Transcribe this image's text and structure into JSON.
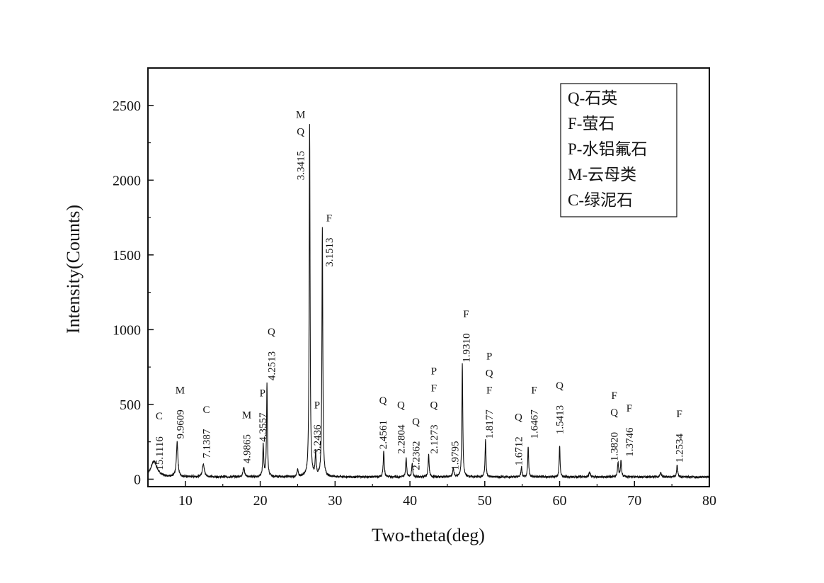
{
  "chart_data": {
    "type": "line",
    "title": "",
    "xlabel": "Two-theta(deg)",
    "ylabel": "Intensity(Counts)",
    "xlim": [
      5,
      80
    ],
    "ylim": [
      -50,
      2750
    ],
    "xticks": [
      10,
      20,
      30,
      40,
      50,
      60,
      70,
      80
    ],
    "yticks": [
      0,
      500,
      1000,
      1500,
      2000,
      2500
    ],
    "grid": false,
    "legend": {
      "placement": "top-right",
      "entries": [
        "Q-石英",
        "F-萤石",
        "P-水铝氟石",
        "M-云母类",
        "C-绿泥石"
      ]
    },
    "series": [
      {
        "peaks": [
          {
            "x": 5.8,
            "y": 105,
            "w": 0.5
          },
          {
            "x": 8.9,
            "y": 230,
            "w": 0.12
          },
          {
            "x": 12.4,
            "y": 90,
            "w": 0.15
          },
          {
            "x": 17.8,
            "y": 65,
            "w": 0.12
          },
          {
            "x": 20.4,
            "y": 210,
            "w": 0.08
          },
          {
            "x": 20.9,
            "y": 620,
            "w": 0.07
          },
          {
            "x": 25.0,
            "y": 45,
            "w": 0.1
          },
          {
            "x": 26.6,
            "y": 2360,
            "w": 0.07
          },
          {
            "x": 27.4,
            "y": 150,
            "w": 0.08
          },
          {
            "x": 28.3,
            "y": 1670,
            "w": 0.07
          },
          {
            "x": 36.5,
            "y": 175,
            "w": 0.08
          },
          {
            "x": 39.5,
            "y": 130,
            "w": 0.08
          },
          {
            "x": 40.3,
            "y": 90,
            "w": 0.08
          },
          {
            "x": 42.5,
            "y": 150,
            "w": 0.08
          },
          {
            "x": 45.8,
            "y": 55,
            "w": 0.1
          },
          {
            "x": 47.0,
            "y": 760,
            "w": 0.07
          },
          {
            "x": 50.1,
            "y": 250,
            "w": 0.07
          },
          {
            "x": 54.9,
            "y": 70,
            "w": 0.08
          },
          {
            "x": 55.8,
            "y": 205,
            "w": 0.07
          },
          {
            "x": 60.0,
            "y": 210,
            "w": 0.07
          },
          {
            "x": 64.0,
            "y": 35,
            "w": 0.1
          },
          {
            "x": 67.8,
            "y": 100,
            "w": 0.08
          },
          {
            "x": 68.2,
            "y": 110,
            "w": 0.08
          },
          {
            "x": 73.5,
            "y": 30,
            "w": 0.1
          },
          {
            "x": 75.7,
            "y": 80,
            "w": 0.08
          }
        ],
        "baseline": 15
      }
    ],
    "peak_labels": [
      {
        "text": "15.1116",
        "x": 6.5,
        "y": 60,
        "phase": "C"
      },
      {
        "text": "9.9609",
        "x": 9.3,
        "y": 270,
        "phase": "M"
      },
      {
        "text": "7.1387",
        "x": 12.8,
        "y": 140,
        "phase": "C"
      },
      {
        "text": "4.9865",
        "x": 18.2,
        "y": 105,
        "phase": "M"
      },
      {
        "text": "4.3557",
        "x": 20.3,
        "y": 250,
        "phase": "P"
      },
      {
        "text": "4.2513",
        "x": 21.5,
        "y": 660,
        "phase": "Q"
      },
      {
        "text": "3.3415",
        "x": 25.4,
        "y": 2000,
        "phase": "M\nQ"
      },
      {
        "text": "3.2436",
        "x": 27.6,
        "y": 170,
        "phase": "P"
      },
      {
        "text": "3.1513",
        "x": 29.2,
        "y": 1420,
        "phase": "F"
      },
      {
        "text": "2.4561",
        "x": 36.4,
        "y": 200,
        "phase": "Q"
      },
      {
        "text": "2.2804",
        "x": 38.8,
        "y": 170,
        "phase": "Q"
      },
      {
        "text": "2.2362",
        "x": 40.8,
        "y": 60,
        "phase": "Q"
      },
      {
        "text": "2.1273",
        "x": 43.2,
        "y": 170,
        "phase": "P\nF\nQ"
      },
      {
        "text": "1.9795",
        "x": 46.0,
        "y": 60,
        "phase": ""
      },
      {
        "text": "1.9310",
        "x": 47.5,
        "y": 780,
        "phase": "F"
      },
      {
        "text": "1.8177",
        "x": 50.6,
        "y": 270,
        "phase": "P\nQ\nF"
      },
      {
        "text": "1.6712",
        "x": 54.5,
        "y": 90,
        "phase": "Q"
      },
      {
        "text": "1.6467",
        "x": 56.6,
        "y": 270,
        "phase": "F"
      },
      {
        "text": "1.5413",
        "x": 60.0,
        "y": 300,
        "phase": "Q"
      },
      {
        "text": "1.3820",
        "x": 67.3,
        "y": 120,
        "phase": "F\nQ"
      },
      {
        "text": "1.3746",
        "x": 69.3,
        "y": 150,
        "phase": "F"
      },
      {
        "text": "1.2534",
        "x": 76.0,
        "y": 110,
        "phase": "F"
      }
    ]
  }
}
